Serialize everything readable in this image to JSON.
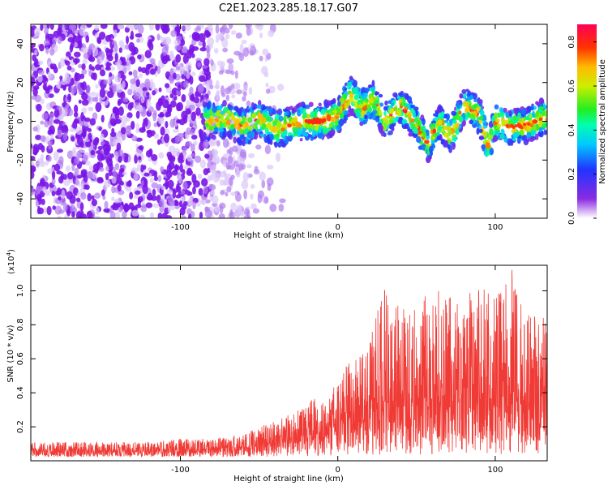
{
  "title": "C2E1.2023.285.18.17.G07",
  "chart_data": [
    {
      "type": "heatmap",
      "xlabel": "Height of straight line (km)",
      "ylabel": "Frequency (Hz)",
      "xlim": [
        -195,
        133
      ],
      "ylim": [
        -50,
        50
      ],
      "x_ticks": [
        -100,
        0,
        100
      ],
      "x_tick_labels": [
        "-100",
        "0",
        "100"
      ],
      "y_ticks": [
        -40,
        -20,
        0,
        20,
        40
      ],
      "y_tick_labels": [
        "-40",
        "-20",
        "0",
        "20",
        "40"
      ],
      "colorbar": {
        "label": "Normalized spectral amplitude",
        "range": [
          0,
          0.88
        ],
        "ticks": [
          0.0,
          0.2,
          0.4,
          0.6,
          0.8
        ],
        "tick_labels": [
          "0.0",
          "0.2",
          "0.4",
          "0.6",
          "0.8"
        ]
      },
      "ridge": [
        {
          "x": -82,
          "f": 0
        },
        {
          "x": -70,
          "f": 1
        },
        {
          "x": -60,
          "f": -3
        },
        {
          "x": -50,
          "f": 1
        },
        {
          "x": -40,
          "f": -4
        },
        {
          "x": -30,
          "f": -2
        },
        {
          "x": -20,
          "f": 0
        },
        {
          "x": -10,
          "f": 0
        },
        {
          "x": 0,
          "f": 3
        },
        {
          "x": 8,
          "f": 14
        },
        {
          "x": 15,
          "f": 6
        },
        {
          "x": 22,
          "f": 12
        },
        {
          "x": 30,
          "f": 0
        },
        {
          "x": 40,
          "f": 8
        },
        {
          "x": 50,
          "f": -2
        },
        {
          "x": 57,
          "f": -12
        },
        {
          "x": 65,
          "f": 0
        },
        {
          "x": 72,
          "f": -8
        },
        {
          "x": 80,
          "f": 8
        },
        {
          "x": 90,
          "f": 3
        },
        {
          "x": 96,
          "f": -15
        },
        {
          "x": 100,
          "f": 0
        },
        {
          "x": 110,
          "f": -3
        },
        {
          "x": 120,
          "f": -2
        },
        {
          "x": 133,
          "f": 3
        }
      ]
    },
    {
      "type": "line",
      "xlabel": "Height of straight line (km)",
      "ylabel": "SNR (10 * v/v)",
      "y_scale_label": "(x10",
      "y_scale_exponent": "4",
      "y_scale_close": ")",
      "xlim": [
        -195,
        133
      ],
      "ylim": [
        0,
        1.15
      ],
      "x_ticks": [
        -100,
        0,
        100
      ],
      "x_tick_labels": [
        "-100",
        "0",
        "100"
      ],
      "y_ticks": [
        0.2,
        0.4,
        0.6,
        0.8,
        1.0
      ],
      "y_tick_labels": [
        "0.2",
        "0.4",
        "0.6",
        "0.8",
        "1.0"
      ],
      "color": "#f03a35",
      "series": [
        {
          "x": [
            -195,
            -175,
            -150,
            -125,
            -100,
            -80,
            -60,
            -45,
            -35,
            -25,
            -15,
            -8,
            0,
            10,
            20,
            30,
            40,
            50,
            60,
            70,
            80,
            90,
            100,
            110,
            120,
            133
          ],
          "mean": [
            0.06,
            0.06,
            0.06,
            0.06,
            0.065,
            0.07,
            0.08,
            0.1,
            0.12,
            0.14,
            0.16,
            0.18,
            0.22,
            0.28,
            0.32,
            0.34,
            0.36,
            0.37,
            0.37,
            0.38,
            0.39,
            0.39,
            0.4,
            0.4,
            0.42,
            0.42
          ],
          "peak": [
            0.11,
            0.11,
            0.11,
            0.11,
            0.13,
            0.13,
            0.16,
            0.22,
            0.26,
            0.3,
            0.37,
            0.33,
            0.5,
            0.62,
            0.7,
            1.05,
            0.9,
            0.95,
            1.02,
            0.98,
            0.95,
            1.05,
            0.95,
            1.14,
            0.9,
            0.85
          ]
        }
      ]
    }
  ]
}
